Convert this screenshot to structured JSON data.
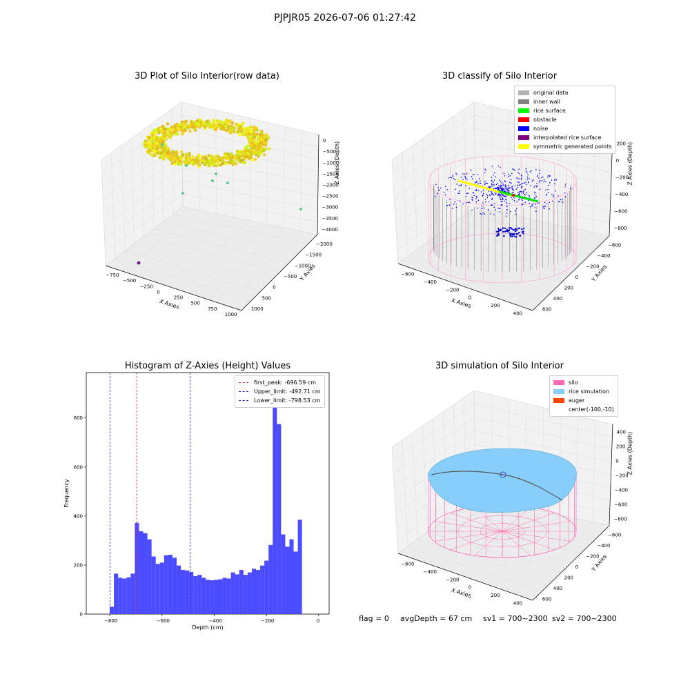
{
  "suptitle": "PJPJR05 2026-07-06 01:27:42",
  "colors": {
    "hist_bar": "#4b4bff",
    "peak_line": "#d62728",
    "limit_line": "#1f1fd6",
    "silo_wire": "#ff69b4",
    "rice": "#87cefa",
    "pane": "#f2f2f2"
  },
  "panels": {
    "raw": {
      "title": "3D Plot of Silo Interior(row data)",
      "xlabel": "X Axies",
      "ylabel": "Y Axies",
      "zlabel": "Z Axies (Depth)",
      "xticks": [
        "−750",
        "−500",
        "−250",
        "0",
        "250",
        "500",
        "750",
        "1000"
      ],
      "yticks": [
        "1000",
        "500",
        "0",
        "−500",
        "−1000",
        "−1500",
        "−2000"
      ],
      "zticks": [
        "0",
        "−500",
        "−1000",
        "−1500",
        "−2000",
        "−2500",
        "−3000",
        "−3500",
        "−4000"
      ]
    },
    "classify": {
      "title": "3D classify of Silo Interior",
      "xlabel": "X Axies",
      "ylabel": "Y Axies",
      "zlabel": "Z Axies (Depth)",
      "xticks": [
        "−600",
        "−400",
        "−200",
        "0",
        "200",
        "400"
      ],
      "yticks": [
        "600",
        "400",
        "200",
        "0",
        "−200",
        "−400",
        "−600"
      ],
      "zticks": [
        "200",
        "0",
        "−200",
        "−400",
        "−600",
        "−800"
      ],
      "legend": [
        {
          "label": "original data",
          "color": "#b3b3b3"
        },
        {
          "label": "inner wall",
          "color": "#808080"
        },
        {
          "label": "rice surface",
          "color": "#00ff00"
        },
        {
          "label": "obstacle",
          "color": "#ff0000"
        },
        {
          "label": "noise",
          "color": "#0000ff"
        },
        {
          "label": "interpolated rice surface",
          "color": "#800080"
        },
        {
          "label": "symmetric generated points",
          "color": "#ffff00"
        }
      ]
    },
    "simulation": {
      "title": "3D simulation of Silo Interior",
      "xlabel": "X Axies",
      "ylabel": "Y Axies",
      "zlabel": "Z Axies (Depth)",
      "xticks": [
        "−600",
        "−400",
        "−200",
        "0",
        "200",
        "400"
      ],
      "yticks": [
        "600",
        "400",
        "200",
        "0",
        "−200",
        "−400",
        "−600"
      ],
      "zticks": [
        "400",
        "200",
        "0",
        "−200",
        "−400",
        "−600",
        "−800"
      ],
      "legend": [
        {
          "label": "silo",
          "color": "#ff69b4"
        },
        {
          "label": "rice simulation",
          "color": "#87cefa"
        },
        {
          "label": "auger",
          "color": "#ff4500"
        },
        {
          "label": "center(-100,-10)",
          "color": ""
        }
      ]
    }
  },
  "chart_data": [
    {
      "type": "bar",
      "title": "Histogram of Z-Axies (Height) Values",
      "xlabel": "Depth (cm)",
      "ylabel": "Frequency",
      "xlim": [
        -890,
        40
      ],
      "ylim": [
        0,
        985
      ],
      "bin_start": -800,
      "bin_width": 16,
      "values": [
        30,
        165,
        148,
        145,
        150,
        165,
        372,
        338,
        330,
        305,
        235,
        205,
        210,
        240,
        242,
        230,
        198,
        180,
        178,
        172,
        155,
        160,
        148,
        140,
        138,
        140,
        142,
        148,
        145,
        170,
        162,
        180,
        160,
        170,
        185,
        180,
        198,
        218,
        282,
        960,
        775,
        325,
        275,
        305,
        255,
        385
      ],
      "xticks": [
        -800,
        -600,
        -400,
        -200,
        0
      ],
      "yticks": [
        0,
        200,
        400,
        600,
        800
      ],
      "vlines": [
        {
          "label": "first_peak: -696.59 cm",
          "x": -696.59,
          "kind": "peak"
        },
        {
          "label": "Upper_limit: -492.71 cm",
          "x": -492.71,
          "kind": "limit"
        },
        {
          "label": "Lower_limit: -798.53 cm",
          "x": -798.53,
          "kind": "limit"
        }
      ]
    }
  ],
  "footer": {
    "flag": "flag = 0",
    "avg": "avgDepth = 67 cm",
    "sv1": "sv1 = 700~2300",
    "sv2": "sv2 = 700~2300"
  }
}
